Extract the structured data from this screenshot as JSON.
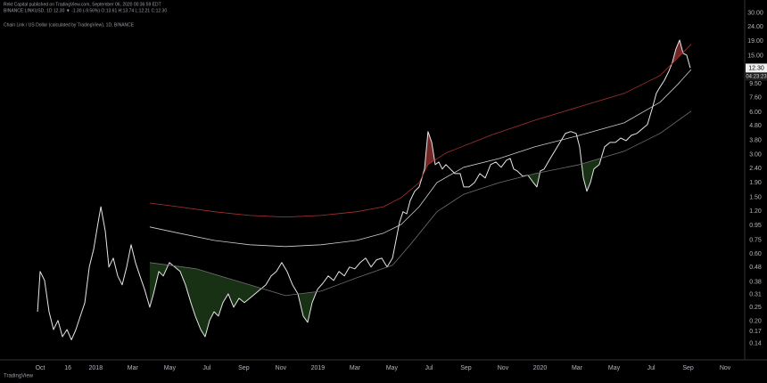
{
  "header": {
    "publisher": "Rekt Capital published on TradingView.com, September 06, 2020 00:36:59 EDT",
    "symbol_line": "BINANCE:LINKUSD, 1D  12.30 ▼ -1.30 (-9.56%) O:13.61 H:13.74 L:12.21 C:12.30",
    "study_line": "Chain Link / US Dollar (calculated by TradingView), 1D, BINANCE"
  },
  "footer": {
    "logo": "TradingView"
  },
  "chart_data": {
    "type": "line",
    "log_scale": true,
    "grid": false,
    "last_price_label": "12.30",
    "countdown": "04:23:23",
    "xlim": [
      -2.17,
      37.96
    ],
    "ylim": [
      0.107,
      37.2
    ],
    "xticks": [
      {
        "value": 0,
        "label": "Oct"
      },
      {
        "value": 1.5,
        "label": "16"
      },
      {
        "value": 3,
        "label": "2018"
      },
      {
        "value": 5,
        "label": "Mar"
      },
      {
        "value": 7,
        "label": "May"
      },
      {
        "value": 9,
        "label": "Jul"
      },
      {
        "value": 11,
        "label": "Sep"
      },
      {
        "value": 13,
        "label": "Nov"
      },
      {
        "value": 15,
        "label": "2019"
      },
      {
        "value": 17,
        "label": "Mar"
      },
      {
        "value": 19,
        "label": "May"
      },
      {
        "value": 21,
        "label": "Jul"
      },
      {
        "value": 23,
        "label": "Sep"
      },
      {
        "value": 25,
        "label": "Nov"
      },
      {
        "value": 27,
        "label": "2020"
      },
      {
        "value": 29,
        "label": "Mar"
      },
      {
        "value": 31,
        "label": "May"
      },
      {
        "value": 33,
        "label": "Jul"
      },
      {
        "value": 35,
        "label": "Sep"
      },
      {
        "value": 37,
        "label": "Nov"
      }
    ],
    "yticks": [
      {
        "value": 30,
        "label": "30.00"
      },
      {
        "value": 24,
        "label": "24.00"
      },
      {
        "value": 19,
        "label": "19.00"
      },
      {
        "value": 15,
        "label": "15.00"
      },
      {
        "value": 9.5,
        "label": "9.50"
      },
      {
        "value": 7.6,
        "label": "7.60"
      },
      {
        "value": 6,
        "label": "6.00"
      },
      {
        "value": 4.8,
        "label": "4.80"
      },
      {
        "value": 3.8,
        "label": "3.80"
      },
      {
        "value": 3,
        "label": "3.00"
      },
      {
        "value": 2.4,
        "label": "2.40"
      },
      {
        "value": 1.9,
        "label": "1.90"
      },
      {
        "value": 1.5,
        "label": "1.50"
      },
      {
        "value": 1.2,
        "label": "1.20"
      },
      {
        "value": 0.95,
        "label": "0.95"
      },
      {
        "value": 0.75,
        "label": "0.75"
      },
      {
        "value": 0.6,
        "label": "0.60"
      },
      {
        "value": 0.48,
        "label": "0.48"
      },
      {
        "value": 0.38,
        "label": "0.38"
      },
      {
        "value": 0.31,
        "label": "0.31"
      },
      {
        "value": 0.25,
        "label": "0.25"
      },
      {
        "value": 0.2,
        "label": "0.20"
      },
      {
        "value": 0.17,
        "label": "0.17"
      },
      {
        "value": 0.14,
        "label": "0.14"
      }
    ],
    "series": [
      {
        "color": "#e6e6e6",
        "x": [
          -0.14,
          0,
          0.24,
          0.48,
          0.72,
          0.96,
          1.2,
          1.45,
          1.69,
          1.93,
          2.17,
          2.41,
          2.65,
          2.89,
          3.13,
          3.28,
          3.52,
          3.71,
          3.95,
          4.19,
          4.43,
          4.67,
          4.91,
          5.15,
          5.39,
          5.64,
          5.92,
          6.12,
          6.41,
          6.65,
          6.98,
          7.27,
          7.56,
          7.85,
          8.14,
          8.38,
          8.67,
          8.91,
          9.15,
          9.39,
          9.63,
          9.87,
          10.16,
          10.45,
          10.74,
          11.03,
          11.32,
          11.61,
          11.9,
          12.19,
          12.48,
          12.76,
          13.05,
          13.34,
          13.63,
          13.92,
          14.21,
          14.45,
          14.69,
          14.98,
          15.27,
          15.56,
          15.85,
          16.14,
          16.43,
          16.71,
          17.0,
          17.29,
          17.58,
          17.87,
          18.16,
          18.45,
          18.74,
          19.03,
          19.22,
          19.41,
          19.6,
          19.8,
          19.99,
          20.23,
          20.47,
          20.76,
          20.95,
          21.15,
          21.34,
          21.53,
          21.72,
          21.92,
          22.16,
          22.4,
          22.69,
          22.88,
          23.17,
          23.46,
          23.75,
          24.04,
          24.33,
          24.61,
          24.9,
          25.19,
          25.39,
          25.58,
          25.77,
          26.06,
          26.35,
          26.64,
          26.83,
          27.02,
          27.22,
          27.5,
          27.79,
          28.08,
          28.37,
          28.66,
          28.95,
          29.14,
          29.34,
          29.53,
          29.72,
          29.91,
          30.2,
          30.49,
          30.78,
          31.07,
          31.36,
          31.65,
          31.94,
          32.23,
          32.51,
          32.8,
          33.09,
          33.28,
          33.48,
          33.72,
          33.96,
          34.15,
          34.34,
          34.54,
          34.73,
          34.92,
          35.12
        ],
        "values": [
          0.234,
          0.45,
          0.389,
          0.234,
          0.175,
          0.203,
          0.156,
          0.175,
          0.148,
          0.175,
          0.218,
          0.271,
          0.484,
          0.646,
          0.998,
          1.29,
          0.863,
          0.484,
          0.559,
          0.419,
          0.362,
          0.484,
          0.695,
          0.52,
          0.419,
          0.337,
          0.252,
          0.313,
          0.45,
          0.419,
          0.52,
          0.484,
          0.45,
          0.362,
          0.271,
          0.218,
          0.175,
          0.156,
          0.203,
          0.234,
          0.218,
          0.271,
          0.313,
          0.252,
          0.291,
          0.271,
          0.291,
          0.313,
          0.337,
          0.362,
          0.419,
          0.45,
          0.52,
          0.45,
          0.362,
          0.313,
          0.218,
          0.197,
          0.271,
          0.337,
          0.372,
          0.419,
          0.389,
          0.45,
          0.419,
          0.484,
          0.47,
          0.52,
          0.559,
          0.484,
          0.543,
          0.559,
          0.484,
          0.559,
          0.746,
          0.998,
          1.19,
          1.15,
          1.43,
          1.66,
          1.78,
          2.38,
          4.38,
          3.67,
          2.56,
          2.67,
          2.38,
          2.56,
          2.38,
          2.21,
          2.21,
          1.78,
          1.78,
          1.91,
          2.21,
          2.06,
          2.56,
          2.67,
          2.45,
          2.75,
          2.83,
          2.38,
          2.31,
          2.12,
          2.15,
          1.91,
          1.78,
          2.31,
          2.38,
          2.75,
          3.18,
          3.67,
          4.25,
          4.38,
          4.25,
          3.42,
          2.06,
          1.66,
          1.91,
          2.38,
          2.56,
          3.42,
          3.67,
          3.67,
          3.94,
          3.78,
          4.12,
          4.25,
          4.56,
          4.91,
          6.56,
          8.15,
          9.02,
          10.1,
          11.7,
          13.5,
          16.8,
          19.4,
          15.6,
          15.2,
          12.3
        ]
      },
      {
        "color": "#a83232",
        "x": [
          5.92,
          7.47,
          9.39,
          11.32,
          13.25,
          15.17,
          17.1,
          18.55,
          19.51,
          20.47,
          20.95,
          21.92,
          24.33,
          26.73,
          29.14,
          31.55,
          32.51,
          33.48,
          34.2,
          35.16
        ],
        "values": [
          1.37,
          1.29,
          1.19,
          1.12,
          1.09,
          1.12,
          1.19,
          1.29,
          1.5,
          1.91,
          2.56,
          3.09,
          4.12,
          5.27,
          6.56,
          8.15,
          9.42,
          10.9,
          13.5,
          18.1
        ]
      },
      {
        "color": "#cfcfcf",
        "x": [
          5.92,
          7.47,
          9.39,
          11.32,
          13.25,
          15.17,
          17.1,
          18.55,
          19.51,
          20.47,
          21.43,
          22.88,
          24.81,
          26.73,
          29.14,
          31.55,
          33.48,
          34.44,
          35.16
        ],
        "values": [
          0.929,
          0.84,
          0.746,
          0.695,
          0.675,
          0.695,
          0.746,
          0.84,
          0.968,
          1.29,
          1.91,
          2.45,
          2.83,
          3.42,
          4.12,
          5.05,
          7.05,
          9.42,
          12.0
        ]
      },
      {
        "color": "#707070",
        "x": [
          5.92,
          8.43,
          11.32,
          13.25,
          15.17,
          17.1,
          19.03,
          19.99,
          21.43,
          22.88,
          24.81,
          26.73,
          29.14,
          31.55,
          33.48,
          35.16
        ],
        "values": [
          0.52,
          0.47,
          0.362,
          0.304,
          0.327,
          0.406,
          0.498,
          0.695,
          1.19,
          1.58,
          1.91,
          2.21,
          2.56,
          3.18,
          4.25,
          6.1
        ]
      }
    ]
  }
}
